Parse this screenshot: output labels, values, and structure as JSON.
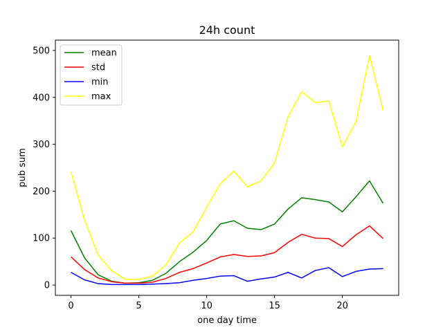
{
  "chart_data": {
    "type": "line",
    "title": "24h count",
    "xlabel": "one day time",
    "ylabel": "pub sum",
    "xlim": [
      -1.15,
      24.15
    ],
    "ylim": [
      -22,
      522
    ],
    "xticks": [
      0,
      5,
      10,
      15,
      20
    ],
    "yticks": [
      0,
      100,
      200,
      300,
      400,
      500
    ],
    "grid": false,
    "legend_position": "top-left",
    "x": [
      0,
      1,
      2,
      3,
      4,
      5,
      6,
      7,
      8,
      9,
      10,
      11,
      12,
      13,
      14,
      15,
      16,
      17,
      18,
      19,
      20,
      21,
      22,
      23
    ],
    "series": [
      {
        "name": "mean",
        "color": "#008000",
        "values": [
          116,
          58,
          22,
          8,
          4,
          5,
          10,
          25,
          50,
          70,
          95,
          130,
          137,
          121,
          118,
          130,
          162,
          186,
          182,
          177,
          156,
          188,
          222,
          174
        ]
      },
      {
        "name": "std",
        "color": "#ff0000",
        "values": [
          60,
          33,
          15,
          7,
          4,
          4,
          6,
          14,
          27,
          35,
          47,
          60,
          65,
          61,
          62,
          69,
          91,
          108,
          100,
          99,
          82,
          107,
          126,
          99
        ]
      },
      {
        "name": "min",
        "color": "#0000ff",
        "values": [
          27,
          11,
          3,
          1,
          1,
          1,
          2,
          3,
          5,
          10,
          14,
          19,
          20,
          8,
          13,
          17,
          27,
          15,
          31,
          37,
          18,
          29,
          34,
          35
        ]
      },
      {
        "name": "max",
        "color": "#ffff00",
        "values": [
          241,
          138,
          64,
          30,
          12,
          12,
          19,
          43,
          90,
          113,
          166,
          216,
          243,
          209,
          222,
          260,
          359,
          412,
          389,
          392,
          294,
          348,
          489,
          372
        ]
      }
    ]
  }
}
